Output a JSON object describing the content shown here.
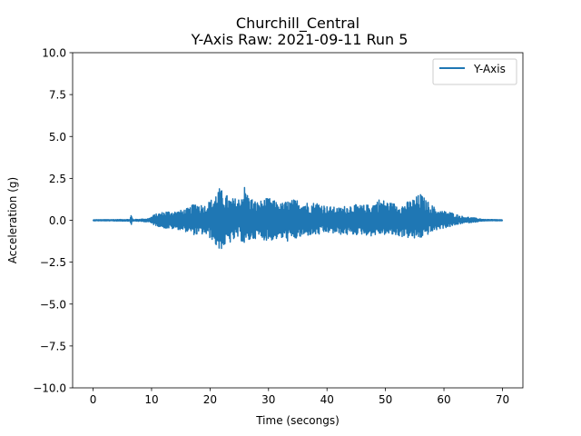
{
  "chart_data": {
    "type": "line",
    "title_line1": "Churchill_Central",
    "title_line2": "Y-Axis Raw: 2021-09-11 Run 5",
    "xlabel": "Time (secongs)",
    "ylabel": "Acceleration (g)",
    "xlim": [
      -3.5,
      73.5
    ],
    "ylim": [
      -10.0,
      10.0
    ],
    "x_ticks": [
      0,
      10,
      20,
      30,
      40,
      50,
      60,
      70
    ],
    "x_tick_labels": [
      "0",
      "10",
      "20",
      "30",
      "40",
      "50",
      "60",
      "70"
    ],
    "y_ticks": [
      10.0,
      7.5,
      5.0,
      2.5,
      0.0,
      -2.5,
      -5.0,
      -7.5,
      -10.0
    ],
    "y_tick_labels": [
      "10.0",
      "7.5",
      "5.0",
      "2.5",
      "0.0",
      "−2.5",
      "−5.0",
      "−7.5",
      "−10.0"
    ],
    "grid": false,
    "legend_position": "top-right",
    "series": [
      {
        "name": "Y-Axis",
        "color": "#1f77b4",
        "envelope": {
          "x": [
            0,
            6.3,
            6.5,
            6.8,
            7.2,
            9.5,
            10.5,
            12.5,
            14.5,
            16.5,
            17.5,
            19.0,
            20.5,
            21.5,
            22.0,
            23.5,
            25.0,
            26.0,
            26.5,
            28.0,
            30.0,
            32.0,
            33.5,
            35.0,
            37.0,
            38.5,
            40.0,
            42.0,
            44.0,
            46.0,
            47.5,
            49.0,
            51.0,
            53.0,
            55.0,
            56.0,
            57.0,
            59.0,
            61.0,
            63.0,
            65.0,
            67.0,
            70.0
          ],
          "upper": [
            0.03,
            0.05,
            0.35,
            0.05,
            0.05,
            0.1,
            0.35,
            0.55,
            0.55,
            0.75,
            1.1,
            0.9,
            1.35,
            1.95,
            1.8,
            1.3,
            1.35,
            2.15,
            1.5,
            1.1,
            1.35,
            1.0,
            1.2,
            1.25,
            1.05,
            1.1,
            0.85,
            0.75,
            0.95,
            0.9,
            0.95,
            1.3,
            1.05,
            0.95,
            1.35,
            1.6,
            1.2,
            0.6,
            0.5,
            0.25,
            0.15,
            0.05,
            0.03
          ],
          "lower": [
            -0.03,
            -0.05,
            -0.3,
            -0.05,
            -0.05,
            -0.1,
            -0.3,
            -0.5,
            -0.55,
            -0.75,
            -0.9,
            -0.85,
            -1.2,
            -1.9,
            -1.7,
            -1.35,
            -1.05,
            -1.6,
            -1.3,
            -1.05,
            -1.25,
            -1.1,
            -1.3,
            -1.1,
            -0.9,
            -0.9,
            -0.75,
            -0.85,
            -0.9,
            -0.85,
            -0.95,
            -0.85,
            -0.9,
            -1.0,
            -1.15,
            -1.1,
            -0.9,
            -0.55,
            -0.4,
            -0.2,
            -0.12,
            -0.04,
            -0.03
          ]
        }
      }
    ]
  }
}
